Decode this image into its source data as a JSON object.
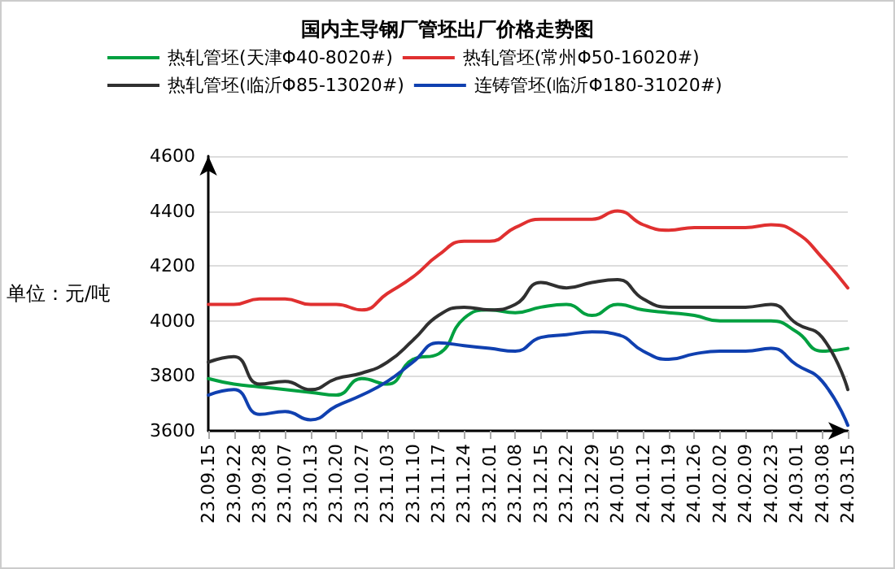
{
  "chart_data": {
    "type": "line",
    "title": "国内主导钢厂管坯出厂价格走势图",
    "ylabel": "单位：元/吨",
    "categories": [
      "23.09.15",
      "23.09.22",
      "23.09.28",
      "23.10.07",
      "23.10.13",
      "23.10.20",
      "23.10.27",
      "23.11.03",
      "23.11.10",
      "23.11.17",
      "23.11.24",
      "23.12.01",
      "23.12.08",
      "23.12.15",
      "23.12.22",
      "23.12.29",
      "24.01.05",
      "24.01.12",
      "24.01.19",
      "24.01.26",
      "24.02.02",
      "24.02.09",
      "24.02.23",
      "24.03.01",
      "24.03.08",
      "24.03.15"
    ],
    "series": [
      {
        "name": "热轧管坯(天津Φ40-8020#)",
        "color": "#00a040",
        "values": [
          3790,
          3770,
          3760,
          3750,
          3740,
          3730,
          3790,
          3770,
          3860,
          3880,
          4010,
          4040,
          4030,
          4050,
          4060,
          4020,
          4060,
          4040,
          4030,
          4020,
          4000,
          4000,
          4000,
          3960,
          3890,
          3900
        ]
      },
      {
        "name": "热轧管坯(常州Φ50-16020#)",
        "color": "#e03030",
        "values": [
          4060,
          4060,
          4080,
          4080,
          4060,
          4060,
          4040,
          4100,
          4160,
          4240,
          4290,
          4290,
          4340,
          4370,
          4370,
          4370,
          4400,
          4350,
          4330,
          4340,
          4340,
          4340,
          4350,
          4320,
          4230,
          4120
        ]
      },
      {
        "name": "热轧管坯(临沂Φ85-13020#)",
        "color": "#303030",
        "values": [
          3850,
          3870,
          3770,
          3780,
          3750,
          3790,
          3810,
          3850,
          3930,
          4020,
          4050,
          4040,
          4060,
          4140,
          4120,
          4140,
          4150,
          4080,
          4050,
          4050,
          4050,
          4050,
          4060,
          3990,
          3940,
          3750
        ]
      },
      {
        "name": "连铸管坯(临沂Φ180-31020#)",
        "color": "#1040b0",
        "values": [
          3730,
          3750,
          3660,
          3670,
          3640,
          3690,
          3730,
          3780,
          3850,
          3920,
          3910,
          3900,
          3890,
          3940,
          3950,
          3960,
          3950,
          3890,
          3860,
          3880,
          3890,
          3890,
          3900,
          3840,
          3780,
          3620
        ]
      }
    ],
    "ylim": [
      3600,
      4600
    ],
    "yticks": [
      3600,
      3800,
      4000,
      4200,
      4400,
      4600
    ],
    "grid": "y",
    "legend": "top",
    "marker": "none",
    "line_style": "solid"
  }
}
